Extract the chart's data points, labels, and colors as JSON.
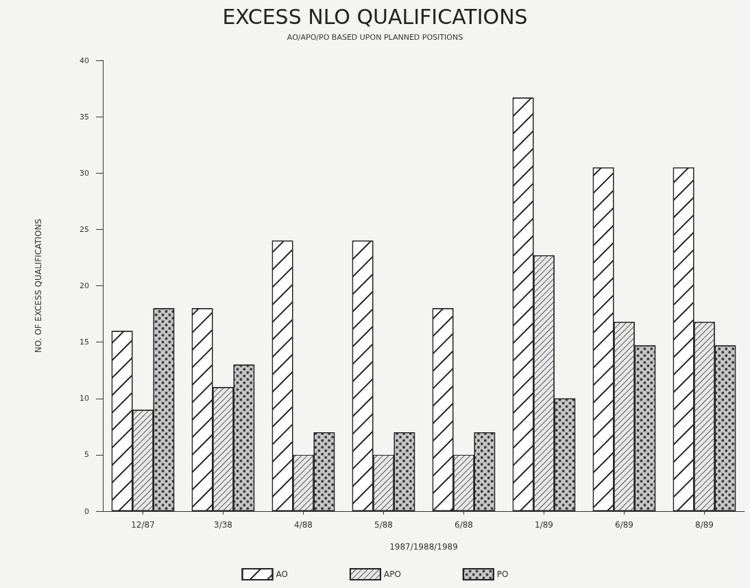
{
  "chart_data": {
    "type": "bar",
    "title": "EXCESS NLO QUALIFICATIONS",
    "subtitle": "AO/APO/PO BASED UPON PLANNED POSITIONS",
    "xlabel": "1987/1988/1989",
    "ylabel": "NO. OF EXCESS QUALIFICATIONS",
    "categories": [
      "12/87",
      "3/38",
      "4/88",
      "5/88",
      "6/88",
      "1/89",
      "6/89",
      "8/89"
    ],
    "series": [
      {
        "name": "AO",
        "color": "#ffffff",
        "values": [
          16,
          18,
          24,
          24,
          18,
          36.7,
          30.5,
          30.5
        ]
      },
      {
        "name": "APO",
        "color": "#e8e8e8",
        "values": [
          9,
          11,
          5,
          5,
          5,
          22.7,
          16.8,
          16.8
        ]
      },
      {
        "name": "PO",
        "color": "#c8c8c8",
        "values": [
          18,
          13,
          7,
          7,
          7,
          10,
          14.7,
          14.7
        ]
      }
    ],
    "ylim": [
      0,
      40
    ],
    "yticks": [
      0,
      5,
      10,
      15,
      20,
      25,
      30,
      35,
      40
    ],
    "grid": false,
    "legend": "bottom"
  }
}
